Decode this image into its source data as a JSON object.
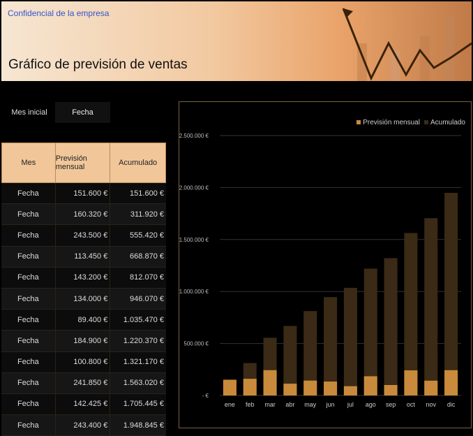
{
  "header": {
    "confidential": "Confidencial de la empresa",
    "title": "Gráfico de previsión de ventas"
  },
  "start": {
    "label": "Mes inicial",
    "value": "Fecha"
  },
  "table": {
    "headers": [
      "Mes",
      "Previsión mensual",
      "Acumulado"
    ],
    "rows": [
      {
        "mes": "Fecha",
        "prevision": "151.600 €",
        "acumulado": "151.600 €"
      },
      {
        "mes": "Fecha",
        "prevision": "160.320 €",
        "acumulado": "311.920 €"
      },
      {
        "mes": "Fecha",
        "prevision": "243.500 €",
        "acumulado": "555.420 €"
      },
      {
        "mes": "Fecha",
        "prevision": "113.450 €",
        "acumulado": "668.870 €"
      },
      {
        "mes": "Fecha",
        "prevision": "143.200 €",
        "acumulado": "812.070 €"
      },
      {
        "mes": "Fecha",
        "prevision": "134.000 €",
        "acumulado": "946.070 €"
      },
      {
        "mes": "Fecha",
        "prevision": "89.400 €",
        "acumulado": "1.035.470 €"
      },
      {
        "mes": "Fecha",
        "prevision": "184.900 €",
        "acumulado": "1.220.370 €"
      },
      {
        "mes": "Fecha",
        "prevision": "100.800 €",
        "acumulado": "1.321.170 €"
      },
      {
        "mes": "Fecha",
        "prevision": "241.850 €",
        "acumulado": "1.563.020 €"
      },
      {
        "mes": "Fecha",
        "prevision": "142.425 €",
        "acumulado": "1.705.445 €"
      },
      {
        "mes": "Fecha",
        "prevision": "243.400 €",
        "acumulado": "1.948.845 €"
      }
    ]
  },
  "colors": {
    "monthly": "#c98a3c",
    "cumulative": "#3a2a16",
    "header_fill": "#f1c79a"
  },
  "chart_data": {
    "type": "bar",
    "categories": [
      "ene",
      "feb",
      "mar",
      "abr",
      "may",
      "jun",
      "jul",
      "ago",
      "sep",
      "oct",
      "nov",
      "dic"
    ],
    "series": [
      {
        "name": "Previsión mensual",
        "values": [
          151600,
          160320,
          243500,
          113450,
          143200,
          134000,
          89400,
          184900,
          100800,
          241850,
          142425,
          243400
        ]
      },
      {
        "name": "Acumulado",
        "values": [
          151600,
          311920,
          555420,
          668870,
          812070,
          946070,
          1035470,
          1220370,
          1321170,
          1563020,
          1705445,
          1948845
        ]
      }
    ],
    "yticks": [
      "- €",
      "500.000 €",
      "1.000.000 €",
      "1.500.000 €",
      "2.000.000 €",
      "2.500.000 €"
    ],
    "ylim": [
      0,
      2500000
    ],
    "legend_position": "top-right",
    "grid": true
  }
}
